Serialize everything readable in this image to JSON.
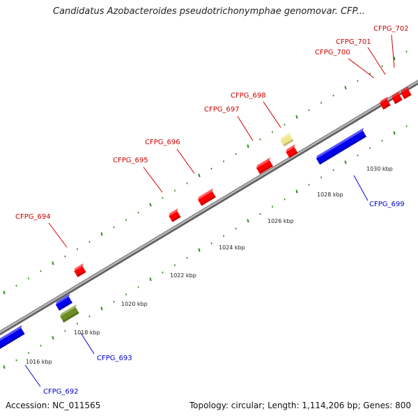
{
  "title": "Candidatus Azobacteroides pseudotrichonymphae genomovar. CFP...",
  "footer": {
    "accession": "Accession: NC_011565",
    "topology": "Topology: circular; Length: 1,114,206 bp; Genes: 800"
  },
  "colors": {
    "backbone": "#8c8c8c",
    "tick": "#2e8b1e",
    "forward_label": "#cc0000",
    "reverse_label": "#0000cc",
    "forward_gene": "#ff0000",
    "reverse_gene": "#0000ee",
    "rna_gene": "#6b8e23",
    "other_gene": "#f0e68c"
  },
  "ticks": [
    "1016 kbp",
    "1018 kbp",
    "1020 kbp",
    "1022 kbp",
    "1024 kbp",
    "1026 kbp",
    "1028 kbp",
    "1030 kbp"
  ],
  "genes": [
    {
      "label": "CFPG_692",
      "strand": "reverse",
      "type": "cds"
    },
    {
      "label": "CFPG_693",
      "strand": "reverse",
      "type": "rna"
    },
    {
      "label": "CFPG_694",
      "strand": "forward",
      "type": "cds"
    },
    {
      "label": "CFPG_695",
      "strand": "forward",
      "type": "cds"
    },
    {
      "label": "CFPG_696",
      "strand": "forward",
      "type": "cds"
    },
    {
      "label": "CFPG_697",
      "strand": "forward",
      "type": "cds"
    },
    {
      "label": "CFPG_698",
      "strand": "forward",
      "type": "other"
    },
    {
      "label": "CFPG_699",
      "strand": "reverse",
      "type": "cds"
    },
    {
      "label": "CFPG_700",
      "strand": "forward",
      "type": "cds"
    },
    {
      "label": "CFPG_701",
      "strand": "forward",
      "type": "cds"
    },
    {
      "label": "CFPG_702",
      "strand": "forward",
      "type": "cds"
    }
  ]
}
